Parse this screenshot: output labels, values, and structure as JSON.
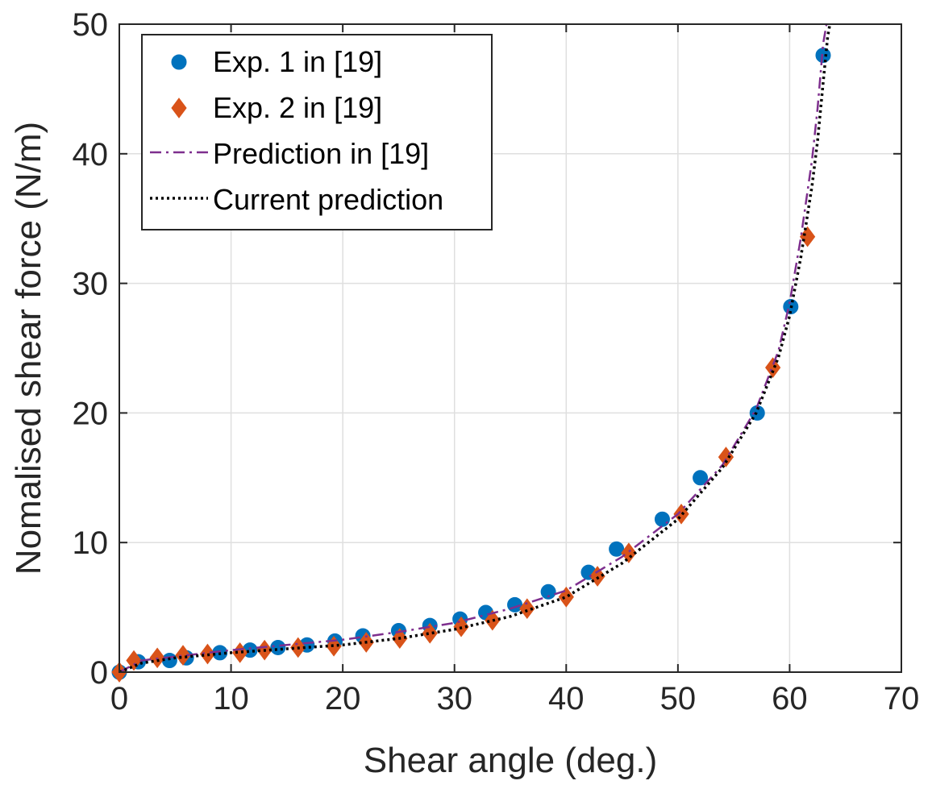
{
  "chart_data": {
    "type": "scatter",
    "xlabel": "Shear angle (deg.)",
    "ylabel": "Nomalised shear force (N/m)",
    "xlim": [
      0,
      70
    ],
    "ylim": [
      0,
      50
    ],
    "xticks": [
      0,
      10,
      20,
      30,
      40,
      50,
      60,
      70
    ],
    "yticks": [
      0,
      10,
      20,
      30,
      40,
      50
    ],
    "grid": true,
    "legend_position": "top-left",
    "series": [
      {
        "name": "Exp. 1 in [19]",
        "kind": "scatter",
        "marker": "circle",
        "color": "#0072BD",
        "x": [
          0,
          1.7,
          4.5,
          6.0,
          9.0,
          11.7,
          14.2,
          16.8,
          19.3,
          21.8,
          25.0,
          27.8,
          30.5,
          32.8,
          35.4,
          38.4,
          42.0,
          44.5,
          48.6,
          52.0,
          57.1,
          60.1,
          63.0
        ],
        "y": [
          0,
          0.8,
          0.9,
          1.1,
          1.5,
          1.7,
          1.9,
          2.1,
          2.4,
          2.8,
          3.2,
          3.6,
          4.1,
          4.6,
          5.2,
          6.2,
          7.7,
          9.5,
          11.8,
          15.0,
          20.0,
          28.2,
          47.6
        ]
      },
      {
        "name": "Exp. 2 in [19]",
        "kind": "scatter",
        "marker": "diamond",
        "color": "#D95319",
        "x": [
          0,
          1.3,
          3.4,
          5.7,
          7.9,
          10.8,
          13.0,
          16.0,
          19.2,
          22.1,
          25.1,
          27.8,
          30.6,
          33.4,
          36.5,
          40.0,
          42.8,
          45.6,
          50.3,
          54.3,
          58.5,
          61.6
        ],
        "y": [
          0,
          0.9,
          1.1,
          1.3,
          1.4,
          1.5,
          1.7,
          1.9,
          2.0,
          2.3,
          2.6,
          3.0,
          3.5,
          4.0,
          4.9,
          5.8,
          7.4,
          9.2,
          12.2,
          16.6,
          23.5,
          33.6
        ]
      },
      {
        "name": "Prediction in [19]",
        "kind": "line",
        "line_style": "dash-dot",
        "color": "#7E2F8E",
        "x": [
          0,
          2,
          5,
          10,
          15,
          20,
          25,
          30,
          35,
          40,
          45,
          50,
          54,
          57,
          59,
          60,
          61,
          62,
          62.5,
          63.0,
          63.3
        ],
        "y": [
          0,
          0.9,
          1.2,
          1.7,
          2.1,
          2.5,
          3.1,
          3.8,
          4.9,
          6.3,
          8.9,
          12.2,
          16.0,
          20.3,
          24.8,
          28.5,
          33.5,
          39.5,
          43.5,
          48.5,
          50
        ]
      },
      {
        "name": "Current prediction",
        "kind": "line",
        "line_style": "dotted",
        "color": "#000000",
        "x": [
          0,
          2,
          5,
          10,
          15,
          20,
          25,
          30,
          35,
          40,
          45,
          50,
          54,
          57,
          59,
          60,
          61,
          62,
          62.5,
          63.0,
          63.4,
          63.6
        ],
        "y": [
          0,
          0.7,
          1.1,
          1.5,
          1.8,
          2.1,
          2.6,
          3.3,
          4.3,
          5.8,
          8.4,
          11.8,
          15.8,
          20.0,
          24.3,
          27.5,
          32.0,
          37.5,
          41.0,
          45.5,
          49.0,
          50
        ]
      }
    ]
  }
}
